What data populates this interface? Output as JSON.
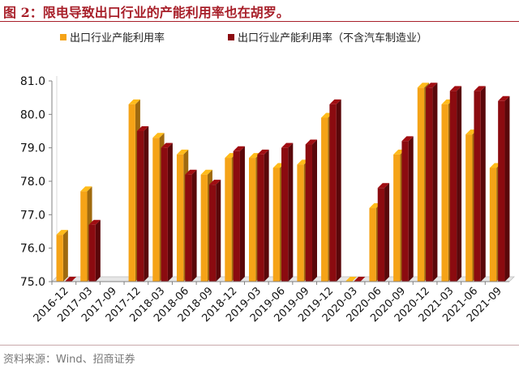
{
  "header": {
    "title": "图 2：限电导致出口行业的产能利用率也在胡罗。"
  },
  "footer": {
    "source": "资料来源：Wind、招商证券"
  },
  "colors": {
    "series1": "#f5a317",
    "series2": "#8b0b10",
    "title": "#a8202a",
    "axis": "#808080"
  },
  "chart_data": {
    "type": "bar",
    "categories": [
      "2016-12",
      "2017-03",
      "2017-09",
      "2017-12",
      "2018-03",
      "2018-06",
      "2018-09",
      "2018-12",
      "2019-03",
      "2019-06",
      "2019-09",
      "2019-12",
      "2020-03",
      "2020-06",
      "2020-09",
      "2020-12",
      "2021-03",
      "2021-06",
      "2021-09"
    ],
    "series": [
      {
        "name": "出口行业产能利用率",
        "values": [
          76.4,
          77.7,
          null,
          80.3,
          79.3,
          78.8,
          78.2,
          78.7,
          78.7,
          78.4,
          78.5,
          79.9,
          75.0,
          77.2,
          78.8,
          80.8,
          80.3,
          79.4,
          78.4
        ]
      },
      {
        "name": "出口行业产能利用率（不含汽车制造业）",
        "values": [
          75.0,
          76.7,
          null,
          79.5,
          79.0,
          78.2,
          77.9,
          78.9,
          78.8,
          79.0,
          79.1,
          80.3,
          75.0,
          77.8,
          79.2,
          80.8,
          80.7,
          80.7,
          80.4
        ]
      }
    ],
    "ylim": [
      75.0,
      81.0
    ],
    "yticks": [
      "75.0",
      "76.0",
      "77.0",
      "78.0",
      "79.0",
      "80.0",
      "81.0"
    ],
    "legend_position": "top",
    "grid": false,
    "title": "",
    "xlabel": "",
    "ylabel": ""
  }
}
